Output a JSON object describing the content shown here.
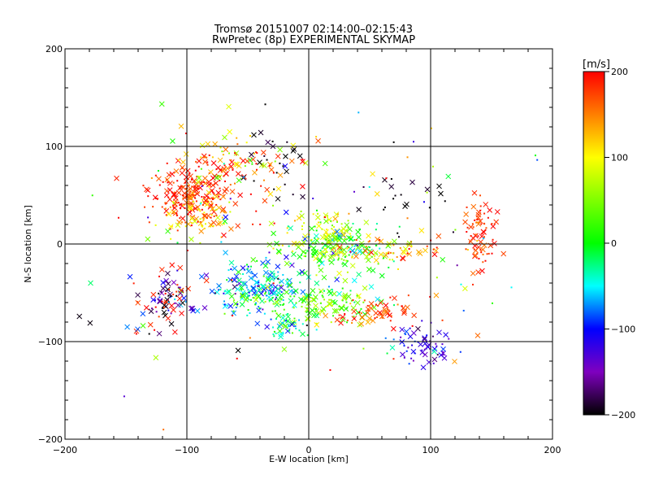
{
  "chart_data": {
    "type": "scatter",
    "title_line1": "Tromsø 20151007 02:14:00–02:15:43",
    "title_line2": "RwPretec (8p) EXPERIMENTAL SKYMAP",
    "xlabel": "E-W location [km]",
    "ylabel": "N-S location [km]",
    "xlim": [
      -200,
      200
    ],
    "ylim": [
      -200,
      200
    ],
    "x_ticks": [
      -200,
      -100,
      0,
      100,
      200
    ],
    "y_ticks": [
      -200,
      -100,
      0,
      100,
      200
    ],
    "x_tick_labels": [
      "−200",
      "−100",
      "0",
      "100",
      "200"
    ],
    "y_tick_labels": [
      "−200",
      "−100",
      "0",
      "100",
      "200"
    ],
    "grid": "major lines at ±100 and 0",
    "colorbar": {
      "label": "[m/s]",
      "range": [
        -200,
        200
      ],
      "tick_values": [
        200,
        100,
        0,
        -100,
        -200
      ],
      "tick_labels": [
        "200",
        "100",
        "0",
        "−100",
        "−200"
      ],
      "colormap": "black-purple-blue-cyan-green-yellow-orange-red"
    },
    "markers": [
      "small dot",
      "x"
    ],
    "clusters": [
      {
        "name": "northwest red cluster",
        "cx": -95,
        "cy": 50,
        "sx": 18,
        "sy": 15,
        "n": 230,
        "vel": 185,
        "vsd": 20
      },
      {
        "name": "northwest yellow patch",
        "cx": -90,
        "cy": 30,
        "sx": 14,
        "sy": 12,
        "n": 70,
        "vel": 110,
        "vsd": 25
      },
      {
        "name": "north arc",
        "cx": -65,
        "cy": 85,
        "sx": 30,
        "sy": 14,
        "n": 90,
        "vel": 140,
        "vsd": 70
      },
      {
        "name": "north black arc",
        "cx": -25,
        "cy": 90,
        "sx": 15,
        "sy": 15,
        "n": 25,
        "vel": -200,
        "vsd": 10
      },
      {
        "name": "centre green band",
        "cx": 20,
        "cy": -5,
        "sx": 22,
        "sy": 12,
        "n": 170,
        "vel": 20,
        "vsd": 50
      },
      {
        "name": "centre yellow",
        "cx": 15,
        "cy": 10,
        "sx": 15,
        "sy": 14,
        "n": 70,
        "vel": 90,
        "vsd": 25
      },
      {
        "name": "east centre",
        "cx": 70,
        "cy": -5,
        "sx": 20,
        "sy": 8,
        "n": 60,
        "vel": 130,
        "vsd": 60
      },
      {
        "name": "southwest blue-cyan",
        "cx": -45,
        "cy": -45,
        "sx": 20,
        "sy": 15,
        "n": 190,
        "vel": -60,
        "vsd": 45
      },
      {
        "name": "south green",
        "cx": 10,
        "cy": -60,
        "sx": 28,
        "sy": 12,
        "n": 140,
        "vel": 30,
        "vsd": 40
      },
      {
        "name": "south red",
        "cx": 55,
        "cy": -70,
        "sx": 20,
        "sy": 10,
        "n": 60,
        "vel": 180,
        "vsd": 25
      },
      {
        "name": "southeast blue",
        "cx": 95,
        "cy": -105,
        "sx": 12,
        "sy": 10,
        "n": 60,
        "vel": -120,
        "vsd": 25
      },
      {
        "name": "west blue-black",
        "cx": -115,
        "cy": -60,
        "sx": 10,
        "sy": 12,
        "n": 60,
        "vel": -150,
        "vsd": 50
      },
      {
        "name": "far west red",
        "cx": -120,
        "cy": -55,
        "sx": 12,
        "sy": 20,
        "n": 30,
        "vel": 190,
        "vsd": 15
      },
      {
        "name": "east red column",
        "cx": 140,
        "cy": 10,
        "sx": 6,
        "sy": 20,
        "n": 75,
        "vel": 180,
        "vsd": 25
      },
      {
        "name": "south-middle green/cyan",
        "cx": -20,
        "cy": -85,
        "sx": 8,
        "sy": 5,
        "n": 35,
        "vel": -30,
        "vsd": 40
      },
      {
        "name": "east black",
        "cx": 85,
        "cy": 45,
        "sx": 20,
        "sy": 20,
        "n": 20,
        "vel": -200,
        "vsd": 10
      },
      {
        "name": "scattered",
        "cx": 0,
        "cy": 0,
        "sx": 100,
        "sy": 80,
        "n": 130,
        "vel": 50,
        "vsd": 150
      }
    ]
  }
}
